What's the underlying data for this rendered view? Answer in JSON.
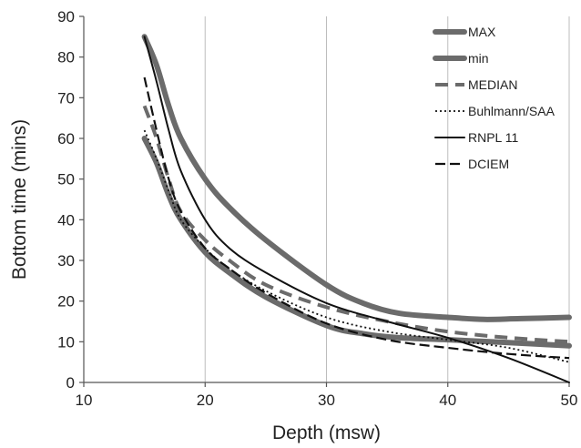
{
  "chart_data": {
    "type": "line",
    "title": "",
    "xlabel": "Depth (msw)",
    "ylabel": "Bottom time (mins)",
    "xlim": [
      10,
      50
    ],
    "ylim": [
      0,
      90
    ],
    "xticks": [
      10,
      20,
      30,
      40,
      50
    ],
    "yticks": [
      0,
      10,
      20,
      30,
      40,
      50,
      60,
      70,
      80,
      90
    ],
    "grid": "vertical",
    "legend": "top-right",
    "series": [
      {
        "name": "MAX",
        "style": "thick-solid",
        "color": "#6b6b6b",
        "x": [
          15,
          16,
          17,
          18,
          20,
          22,
          25,
          30,
          33,
          36,
          40,
          43,
          46,
          50
        ],
        "y": [
          85,
          78,
          68,
          60,
          50,
          43,
          35,
          24,
          19.5,
          17,
          16,
          15.5,
          15.7,
          16
        ]
      },
      {
        "name": "min",
        "style": "thick-solid",
        "color": "#6b6b6b",
        "x": [
          15,
          16,
          17,
          18,
          20,
          22,
          25,
          30,
          33,
          36,
          40,
          45,
          50
        ],
        "y": [
          60,
          54,
          46,
          40,
          32,
          27,
          21,
          14,
          12,
          11,
          10.5,
          9.8,
          9
        ]
      },
      {
        "name": "MEDIAN",
        "style": "dashed",
        "color": "#6b6b6b",
        "x": [
          15,
          16,
          17,
          18,
          20,
          22,
          25,
          30,
          35,
          40,
          45,
          50
        ],
        "y": [
          68,
          60,
          50,
          42,
          35,
          30,
          24,
          18.5,
          15,
          12.5,
          11,
          10
        ]
      },
      {
        "name": "Buhlmann/SAA",
        "style": "dotted",
        "color": "#111111",
        "x": [
          15,
          16,
          17,
          18,
          20,
          22,
          25,
          30,
          35,
          40,
          45,
          50
        ],
        "y": [
          62,
          55,
          47,
          40,
          33,
          28,
          22.5,
          16,
          12.5,
          10.5,
          8.5,
          5
        ]
      },
      {
        "name": "RNPL 11",
        "style": "solid",
        "color": "#111111",
        "x": [
          15,
          16,
          17,
          18,
          20,
          22,
          25,
          30,
          35,
          40,
          45,
          50
        ],
        "y": [
          85,
          74,
          62,
          52,
          40,
          33,
          27,
          19.5,
          15,
          11,
          6,
          0
        ]
      },
      {
        "name": "DCIEM",
        "style": "long-dash",
        "color": "#111111",
        "x": [
          15,
          16,
          17,
          18,
          20,
          22,
          25,
          30,
          35,
          40,
          45,
          50
        ],
        "y": [
          75,
          62,
          50,
          42,
          33,
          28,
          22,
          14.5,
          10.5,
          8.5,
          7,
          6
        ]
      }
    ]
  }
}
